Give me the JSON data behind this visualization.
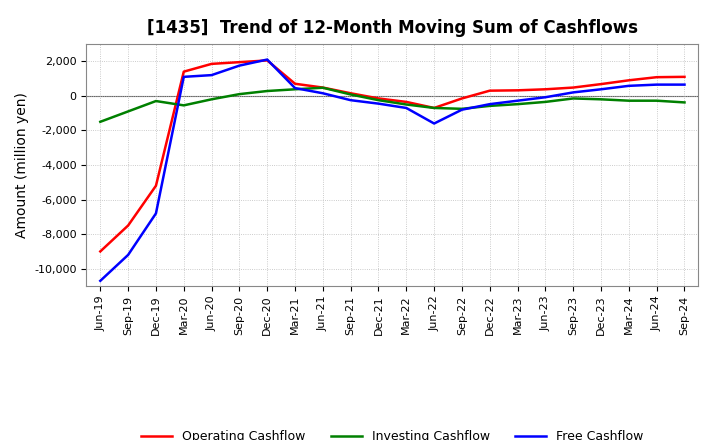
{
  "title": "[1435]  Trend of 12-Month Moving Sum of Cashflows",
  "ylabel": "Amount (million yen)",
  "x_labels": [
    "Jun-19",
    "Sep-19",
    "Dec-19",
    "Mar-20",
    "Jun-20",
    "Sep-20",
    "Dec-20",
    "Mar-21",
    "Jun-21",
    "Sep-21",
    "Dec-21",
    "Mar-22",
    "Jun-22",
    "Sep-22",
    "Dec-22",
    "Mar-23",
    "Jun-23",
    "Sep-23",
    "Dec-23",
    "Mar-24",
    "Jun-24",
    "Sep-24"
  ],
  "operating_cashflow": [
    -9000,
    -7500,
    -5200,
    1400,
    1850,
    1950,
    2050,
    700,
    480,
    150,
    -150,
    -350,
    -700,
    -150,
    300,
    320,
    380,
    480,
    680,
    900,
    1080,
    1100
  ],
  "investing_cashflow": [
    -1500,
    -900,
    -300,
    -550,
    -200,
    100,
    280,
    380,
    470,
    80,
    -250,
    -500,
    -700,
    -750,
    -580,
    -480,
    -350,
    -150,
    -200,
    -280,
    -280,
    -380
  ],
  "free_cashflow": [
    -10700,
    -9200,
    -6800,
    1100,
    1200,
    1750,
    2100,
    450,
    150,
    -250,
    -450,
    -700,
    -1600,
    -800,
    -480,
    -280,
    -80,
    200,
    380,
    580,
    650,
    650
  ],
  "ylim": [
    -11000,
    3000
  ],
  "yticks": [
    -10000,
    -8000,
    -6000,
    -4000,
    -2000,
    0,
    2000
  ],
  "operating_color": "#ff0000",
  "investing_color": "#008000",
  "free_color": "#0000ff",
  "background_color": "#ffffff",
  "grid_color": "#bbbbbb",
  "legend_labels": [
    "Operating Cashflow",
    "Investing Cashflow",
    "Free Cashflow"
  ],
  "title_fontsize": 12,
  "axis_label_fontsize": 10,
  "tick_fontsize": 8,
  "legend_fontsize": 9,
  "line_width": 1.8
}
